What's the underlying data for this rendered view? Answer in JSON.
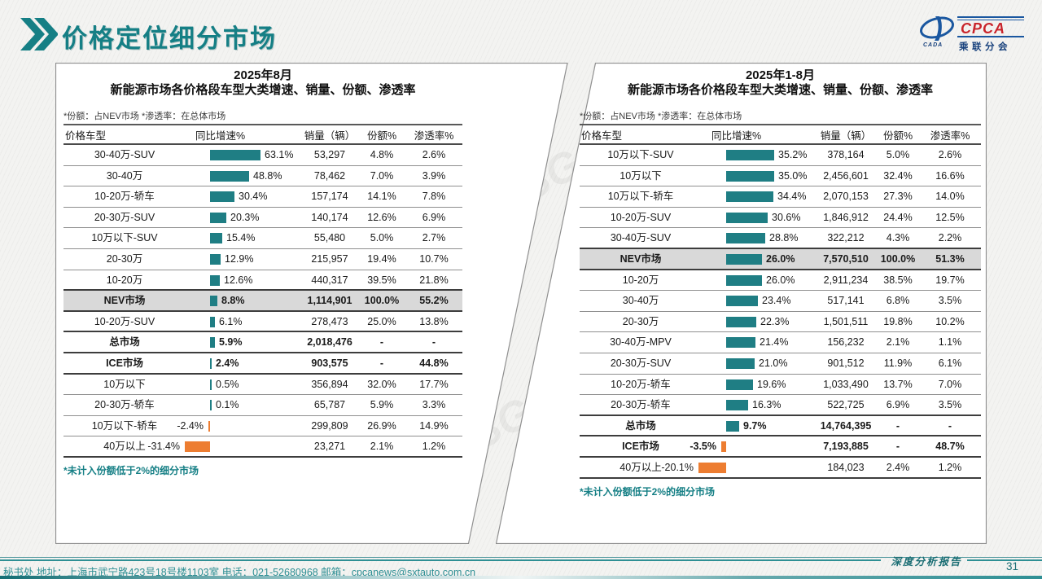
{
  "colors": {
    "accent_teal": "#157f85",
    "bar_positive": "#1f7e84",
    "bar_negative": "#ed7d31",
    "highlight_row_bg": "#d9d9d9",
    "footer_teal": "#2e8f94",
    "logo_blue": "#1a57a0",
    "logo_red": "#c8242b"
  },
  "header": {
    "title": "价格定位细分市场",
    "logo": {
      "acronym": "CPCA",
      "subtitle": "乘联分会",
      "oval_label": "CADA"
    }
  },
  "watermark": {
    "text": "GASGOO"
  },
  "panels": [
    {
      "title_line1": "2025年8月",
      "title_line2": "新能源市场各价格段车型大类增速、销量、份额、渗透率",
      "note": "*份额：占NEV市场  *渗透率：在总体市场",
      "columns": [
        "价格车型",
        "同比增速%",
        "销量（辆）",
        "份额%",
        "渗透率%"
      ],
      "footnote": "*未计入份额低于2%的细分市场",
      "bar_scale": 0.98,
      "rows": [
        {
          "label": "30-40万-SUV",
          "growth": 63.1,
          "growth_label": "63.1%",
          "sales": "53,297",
          "share": "4.8%",
          "penetration": "2.6%",
          "emphasis": false,
          "highlight": false
        },
        {
          "label": "30-40万",
          "growth": 48.8,
          "growth_label": "48.8%",
          "sales": "78,462",
          "share": "7.0%",
          "penetration": "3.9%",
          "emphasis": false,
          "highlight": false
        },
        {
          "label": "10-20万-轿车",
          "growth": 30.4,
          "growth_label": "30.4%",
          "sales": "157,174",
          "share": "14.1%",
          "penetration": "7.8%",
          "emphasis": false,
          "highlight": false
        },
        {
          "label": "20-30万-SUV",
          "growth": 20.3,
          "growth_label": "20.3%",
          "sales": "140,174",
          "share": "12.6%",
          "penetration": "6.9%",
          "emphasis": false,
          "highlight": false
        },
        {
          "label": "10万以下-SUV",
          "growth": 15.4,
          "growth_label": "15.4%",
          "sales": "55,480",
          "share": "5.0%",
          "penetration": "2.7%",
          "emphasis": false,
          "highlight": false
        },
        {
          "label": "20-30万",
          "growth": 12.9,
          "growth_label": "12.9%",
          "sales": "215,957",
          "share": "19.4%",
          "penetration": "10.7%",
          "emphasis": false,
          "highlight": false
        },
        {
          "label": "10-20万",
          "growth": 12.6,
          "growth_label": "12.6%",
          "sales": "440,317",
          "share": "39.5%",
          "penetration": "21.8%",
          "emphasis": false,
          "highlight": false
        },
        {
          "label": "NEV市场",
          "growth": 8.8,
          "growth_label": "8.8%",
          "sales": "1,114,901",
          "share": "100.0%",
          "penetration": "55.2%",
          "emphasis": true,
          "highlight": true
        },
        {
          "label": "10-20万-SUV",
          "growth": 6.1,
          "growth_label": "6.1%",
          "sales": "278,473",
          "share": "25.0%",
          "penetration": "13.8%",
          "emphasis": false,
          "highlight": false
        },
        {
          "label": "总市场",
          "growth": 5.9,
          "growth_label": "5.9%",
          "sales": "2,018,476",
          "share": "-",
          "penetration": "-",
          "emphasis": true,
          "highlight": false
        },
        {
          "label": "ICE市场",
          "growth": 2.4,
          "growth_label": "2.4%",
          "sales": "903,575",
          "share": "-",
          "penetration": "44.8%",
          "emphasis": true,
          "highlight": false
        },
        {
          "label": "10万以下",
          "growth": 0.5,
          "growth_label": "0.5%",
          "sales": "356,894",
          "share": "32.0%",
          "penetration": "17.7%",
          "emphasis": false,
          "highlight": false
        },
        {
          "label": "20-30万-轿车",
          "growth": 0.1,
          "growth_label": "0.1%",
          "sales": "65,787",
          "share": "5.9%",
          "penetration": "3.3%",
          "emphasis": false,
          "highlight": false
        },
        {
          "label": "10万以下-轿车",
          "growth": -2.4,
          "growth_label": "-2.4%",
          "sales": "299,809",
          "share": "26.9%",
          "penetration": "14.9%",
          "emphasis": false,
          "highlight": false
        },
        {
          "label": "40万以上",
          "growth": -31.4,
          "growth_label": "-31.4%",
          "sales": "23,271",
          "share": "2.1%",
          "penetration": "1.2%",
          "emphasis": false,
          "highlight": false
        }
      ]
    },
    {
      "title_line1": "2025年1-8月",
      "title_line2": "新能源市场各价格段车型大类增速、销量、份额、渗透率",
      "note": "*份额：占NEV市场  *渗透率：在总体市场",
      "columns": [
        "价格车型",
        "同比增速%",
        "销量（辆）",
        "份额%",
        "渗透率%"
      ],
      "footnote": "*未计入份额低于2%的细分市场",
      "bar_scale": 1.68,
      "rows": [
        {
          "label": "10万以下-SUV",
          "growth": 35.2,
          "growth_label": "35.2%",
          "sales": "378,164",
          "share": "5.0%",
          "penetration": "2.6%",
          "emphasis": false,
          "highlight": false
        },
        {
          "label": "10万以下",
          "growth": 35.0,
          "growth_label": "35.0%",
          "sales": "2,456,601",
          "share": "32.4%",
          "penetration": "16.6%",
          "emphasis": false,
          "highlight": false
        },
        {
          "label": "10万以下-轿车",
          "growth": 34.4,
          "growth_label": "34.4%",
          "sales": "2,070,153",
          "share": "27.3%",
          "penetration": "14.0%",
          "emphasis": false,
          "highlight": false
        },
        {
          "label": "10-20万-SUV",
          "growth": 30.6,
          "growth_label": "30.6%",
          "sales": "1,846,912",
          "share": "24.4%",
          "penetration": "12.5%",
          "emphasis": false,
          "highlight": false
        },
        {
          "label": "30-40万-SUV",
          "growth": 28.8,
          "growth_label": "28.8%",
          "sales": "322,212",
          "share": "4.3%",
          "penetration": "2.2%",
          "emphasis": false,
          "highlight": false
        },
        {
          "label": "NEV市场",
          "growth": 26.0,
          "growth_label": "26.0%",
          "sales": "7,570,510",
          "share": "100.0%",
          "penetration": "51.3%",
          "emphasis": true,
          "highlight": true
        },
        {
          "label": "10-20万",
          "growth": 26.0,
          "growth_label": "26.0%",
          "sales": "2,911,234",
          "share": "38.5%",
          "penetration": "19.7%",
          "emphasis": false,
          "highlight": false
        },
        {
          "label": "30-40万",
          "growth": 23.4,
          "growth_label": "23.4%",
          "sales": "517,141",
          "share": "6.8%",
          "penetration": "3.5%",
          "emphasis": false,
          "highlight": false
        },
        {
          "label": "20-30万",
          "growth": 22.3,
          "growth_label": "22.3%",
          "sales": "1,501,511",
          "share": "19.8%",
          "penetration": "10.2%",
          "emphasis": false,
          "highlight": false
        },
        {
          "label": "30-40万-MPV",
          "growth": 21.4,
          "growth_label": "21.4%",
          "sales": "156,232",
          "share": "2.1%",
          "penetration": "1.1%",
          "emphasis": false,
          "highlight": false
        },
        {
          "label": "20-30万-SUV",
          "growth": 21.0,
          "growth_label": "21.0%",
          "sales": "901,512",
          "share": "11.9%",
          "penetration": "6.1%",
          "emphasis": false,
          "highlight": false
        },
        {
          "label": "10-20万-轿车",
          "growth": 19.6,
          "growth_label": "19.6%",
          "sales": "1,033,490",
          "share": "13.7%",
          "penetration": "7.0%",
          "emphasis": false,
          "highlight": false
        },
        {
          "label": "20-30万-轿车",
          "growth": 16.3,
          "growth_label": "16.3%",
          "sales": "522,725",
          "share": "6.9%",
          "penetration": "3.5%",
          "emphasis": false,
          "highlight": false
        },
        {
          "label": "总市场",
          "growth": 9.7,
          "growth_label": "9.7%",
          "sales": "14,764,395",
          "share": "-",
          "penetration": "-",
          "emphasis": true,
          "highlight": false
        },
        {
          "label": "ICE市场",
          "growth": -3.5,
          "growth_label": "-3.5%",
          "sales": "7,193,885",
          "share": "-",
          "penetration": "48.7%",
          "emphasis": true,
          "highlight": false
        },
        {
          "label": "40万以上",
          "growth": -20.1,
          "growth_label": "-20.1%",
          "sales": "184,023",
          "share": "2.4%",
          "penetration": "1.2%",
          "emphasis": false,
          "highlight": false
        }
      ]
    }
  ],
  "footer": {
    "left_text": "秘书处  地址：上海市武宁路423号18号楼1103室 电话：021-52680968  邮箱：cpcanews@sxtauto.com.cn",
    "report_label": "深度分析报告",
    "page_number": "31"
  },
  "chart_data": [
    {
      "type": "table",
      "title": "2025年8月 新能源市场各价格段车型大类增速、销量、份额、渗透率",
      "columns": [
        "价格车型",
        "同比增速%",
        "销量（辆）",
        "份额%",
        "渗透率%"
      ],
      "rows": [
        [
          "30-40万-SUV",
          63.1,
          53297,
          4.8,
          2.6
        ],
        [
          "30-40万",
          48.8,
          78462,
          7.0,
          3.9
        ],
        [
          "10-20万-轿车",
          30.4,
          157174,
          14.1,
          7.8
        ],
        [
          "20-30万-SUV",
          20.3,
          140174,
          12.6,
          6.9
        ],
        [
          "10万以下-SUV",
          15.4,
          55480,
          5.0,
          2.7
        ],
        [
          "20-30万",
          12.9,
          215957,
          19.4,
          10.7
        ],
        [
          "10-20万",
          12.6,
          440317,
          39.5,
          21.8
        ],
        [
          "NEV市场",
          8.8,
          1114901,
          100.0,
          55.2
        ],
        [
          "10-20万-SUV",
          6.1,
          278473,
          25.0,
          13.8
        ],
        [
          "总市场",
          5.9,
          2018476,
          null,
          null
        ],
        [
          "ICE市场",
          2.4,
          903575,
          null,
          44.8
        ],
        [
          "10万以下",
          0.5,
          356894,
          32.0,
          17.7
        ],
        [
          "20-30万-轿车",
          0.1,
          65787,
          5.9,
          3.3
        ],
        [
          "10万以下-轿车",
          -2.4,
          299809,
          26.9,
          14.9
        ],
        [
          "40万以上",
          -31.4,
          23271,
          2.1,
          1.2
        ]
      ]
    },
    {
      "type": "table",
      "title": "2025年1-8月 新能源市场各价格段车型大类增速、销量、份额、渗透率",
      "columns": [
        "价格车型",
        "同比增速%",
        "销量（辆）",
        "份额%",
        "渗透率%"
      ],
      "rows": [
        [
          "10万以下-SUV",
          35.2,
          378164,
          5.0,
          2.6
        ],
        [
          "10万以下",
          35.0,
          2456601,
          32.4,
          16.6
        ],
        [
          "10万以下-轿车",
          34.4,
          2070153,
          27.3,
          14.0
        ],
        [
          "10-20万-SUV",
          30.6,
          1846912,
          24.4,
          12.5
        ],
        [
          "30-40万-SUV",
          28.8,
          322212,
          4.3,
          2.2
        ],
        [
          "NEV市场",
          26.0,
          7570510,
          100.0,
          51.3
        ],
        [
          "10-20万",
          26.0,
          2911234,
          38.5,
          19.7
        ],
        [
          "30-40万",
          23.4,
          517141,
          6.8,
          3.5
        ],
        [
          "20-30万",
          22.3,
          1501511,
          19.8,
          10.2
        ],
        [
          "30-40万-MPV",
          21.4,
          156232,
          2.1,
          1.1
        ],
        [
          "20-30万-SUV",
          21.0,
          901512,
          11.9,
          6.1
        ],
        [
          "10-20万-轿车",
          19.6,
          1033490,
          13.7,
          7.0
        ],
        [
          "20-30万-轿车",
          16.3,
          522725,
          6.9,
          3.5
        ],
        [
          "总市场",
          9.7,
          14764395,
          null,
          null
        ],
        [
          "ICE市场",
          -3.5,
          7193885,
          null,
          48.7
        ],
        [
          "40万以上",
          -20.1,
          184023,
          2.4,
          1.2
        ]
      ]
    }
  ]
}
